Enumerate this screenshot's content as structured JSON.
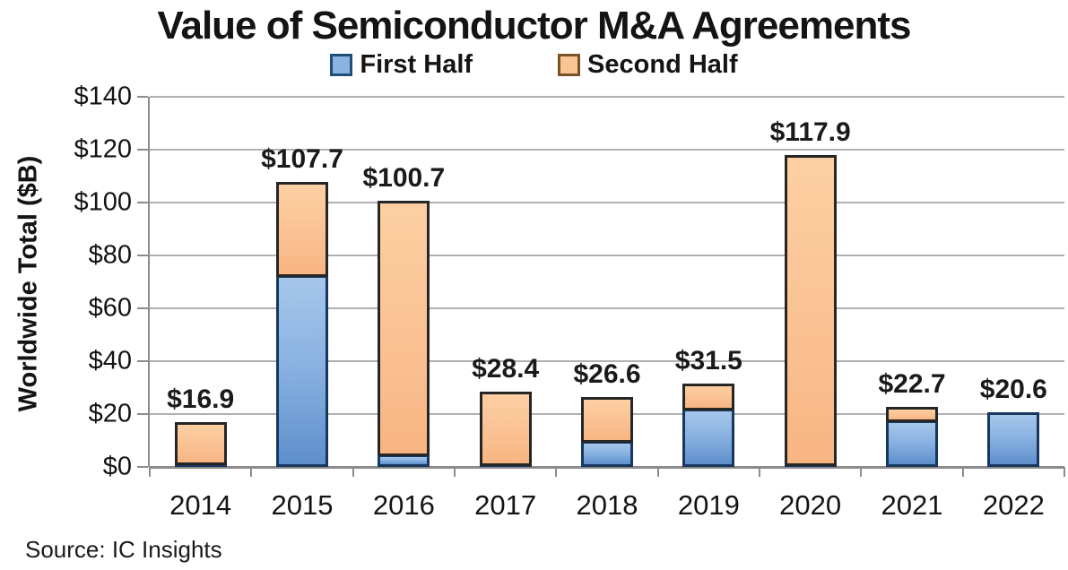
{
  "chart_data": {
    "type": "bar",
    "stacked": true,
    "title": "Value of Semiconductor M&A Agreements",
    "ylabel": "Worldwide Total ($B)",
    "xlabel": "",
    "ylim": [
      0,
      140
    ],
    "ytick_step": 20,
    "ytick_labels": [
      "$0",
      "$20",
      "$40",
      "$60",
      "$80",
      "$100",
      "$120",
      "$140"
    ],
    "grid": true,
    "legend_position": "top",
    "categories": [
      "2014",
      "2015",
      "2016",
      "2017",
      "2018",
      "2019",
      "2020",
      "2021",
      "2022"
    ],
    "series": [
      {
        "name": "First Half",
        "values": [
          1.5,
          72.6,
          4.6,
          1.0,
          10.0,
          22.0,
          1.0,
          17.5,
          20.6
        ],
        "fill_color": "#8ab3e2",
        "border_color": "#17375e"
      },
      {
        "name": "Second Half",
        "values": [
          15.4,
          35.1,
          96.1,
          27.4,
          16.6,
          9.5,
          116.9,
          5.2,
          0
        ],
        "fill_color": "#fac092",
        "border_color": "#262626"
      }
    ],
    "totals": [
      16.9,
      107.7,
      100.7,
      28.4,
      26.6,
      31.5,
      117.9,
      22.7,
      20.6
    ],
    "total_labels": [
      "$16.9",
      "$107.7",
      "$100.7",
      "$28.4",
      "$26.6",
      "$31.5",
      "$117.9",
      "$22.7",
      "$20.6"
    ],
    "annotations": [],
    "source": "Source: IC Insights"
  },
  "legend": {
    "items": [
      {
        "label": "First Half",
        "swatch_fill": "#8ab3e2",
        "swatch_border": "#1f4e79"
      },
      {
        "label": "Second Half",
        "swatch_fill": "#fbc495",
        "swatch_border": "#7a5228"
      }
    ]
  },
  "colors": {
    "gridline": "#b0b0b0",
    "axis": "#8c8c8c",
    "text": "#141414"
  }
}
